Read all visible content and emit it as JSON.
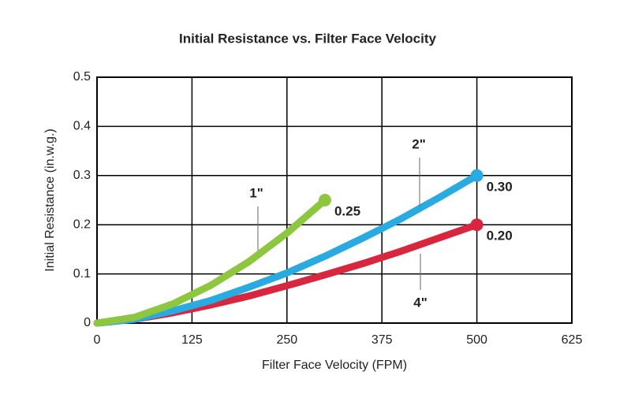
{
  "chart_data": {
    "type": "line",
    "title": "Initial Resistance vs. Filter Face Velocity",
    "x_label": "Filter Face Velocity (FPM)",
    "y_label": "Initial Resistance (in.w.g.)",
    "x": [
      0,
      50,
      100,
      150,
      200,
      250,
      300,
      350,
      400,
      450,
      500
    ],
    "series": [
      {
        "name": "1\"",
        "color": "#8dc63f",
        "values": [
          0,
          0.012,
          0.039,
          0.077,
          0.125,
          0.183,
          0.25,
          null,
          null,
          null,
          null
        ],
        "value_labels": [
          null,
          null,
          null,
          null,
          null,
          null,
          "0.25",
          null,
          null,
          null,
          null
        ]
      },
      {
        "name": "2\"",
        "color": "#29abe2",
        "values": [
          0,
          0.008,
          0.025,
          0.046,
          0.073,
          0.102,
          0.136,
          0.173,
          0.212,
          0.255,
          0.3
        ],
        "value_labels": [
          null,
          null,
          null,
          null,
          null,
          null,
          null,
          null,
          null,
          null,
          "0.30"
        ]
      },
      {
        "name": "4\"",
        "color": "#d7263d",
        "values": [
          0,
          0.008,
          0.021,
          0.037,
          0.055,
          0.076,
          0.098,
          0.121,
          0.146,
          0.173,
          0.2
        ],
        "value_labels": [
          null,
          null,
          null,
          null,
          null,
          null,
          null,
          null,
          null,
          null,
          "0.20"
        ]
      }
    ],
    "xlim": [
      0,
      625
    ],
    "xticks": [
      0,
      125,
      250,
      375,
      500,
      625
    ],
    "ylim": [
      0,
      0.5
    ],
    "yticks": [
      0,
      0.1,
      0.2,
      0.3,
      0.4,
      0.5
    ],
    "grid": true
  }
}
